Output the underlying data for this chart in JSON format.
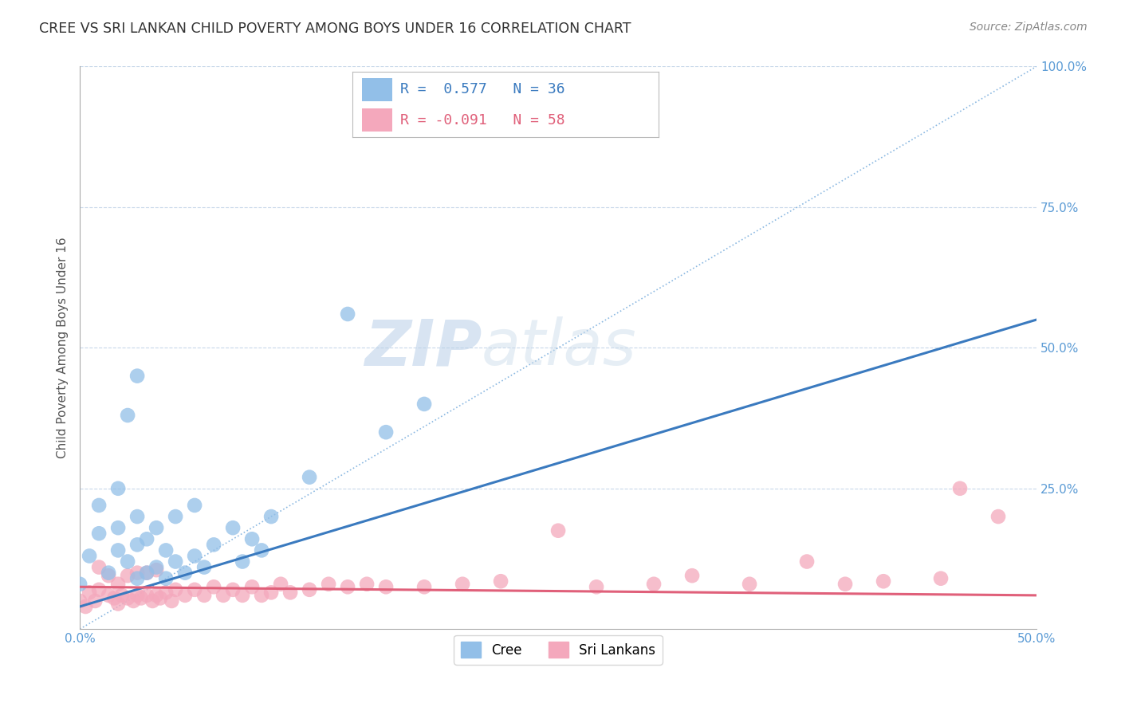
{
  "title": "CREE VS SRI LANKAN CHILD POVERTY AMONG BOYS UNDER 16 CORRELATION CHART",
  "source": "Source: ZipAtlas.com",
  "ylabel": "Child Poverty Among Boys Under 16",
  "xlim": [
    0.0,
    0.5
  ],
  "ylim": [
    0.0,
    1.0
  ],
  "xtick_positions": [
    0.0,
    0.5
  ],
  "xticklabels": [
    "0.0%",
    "50.0%"
  ],
  "ytick_positions": [
    0.25,
    0.5,
    0.75,
    1.0
  ],
  "yticklabels": [
    "25.0%",
    "50.0%",
    "75.0%",
    "100.0%"
  ],
  "cree_R": 0.577,
  "cree_N": 36,
  "sri_R": -0.091,
  "sri_N": 58,
  "cree_color": "#92bfe8",
  "sri_color": "#f4a8bc",
  "cree_line_color": "#3a7abf",
  "sri_line_color": "#e0607a",
  "diagonal_color": "#5b9bd5",
  "watermark_zip": "ZIP",
  "watermark_atlas": "atlas",
  "background_color": "#ffffff",
  "grid_color": "#c8d8ea",
  "title_color": "#333333",
  "axis_label_color": "#5b9bd5",
  "legend_box_color": "#f0f4f8",
  "cree_x": [
    0.0,
    0.005,
    0.01,
    0.01,
    0.015,
    0.02,
    0.02,
    0.02,
    0.025,
    0.025,
    0.03,
    0.03,
    0.03,
    0.03,
    0.035,
    0.035,
    0.04,
    0.04,
    0.045,
    0.045,
    0.05,
    0.05,
    0.055,
    0.06,
    0.06,
    0.065,
    0.07,
    0.08,
    0.085,
    0.09,
    0.095,
    0.1,
    0.12,
    0.14,
    0.16,
    0.18
  ],
  "cree_y": [
    0.08,
    0.13,
    0.17,
    0.22,
    0.1,
    0.14,
    0.18,
    0.25,
    0.12,
    0.38,
    0.09,
    0.15,
    0.2,
    0.45,
    0.1,
    0.16,
    0.11,
    0.18,
    0.09,
    0.14,
    0.12,
    0.2,
    0.1,
    0.13,
    0.22,
    0.11,
    0.15,
    0.18,
    0.12,
    0.16,
    0.14,
    0.2,
    0.27,
    0.56,
    0.35,
    0.4
  ],
  "sri_x": [
    0.0,
    0.003,
    0.005,
    0.008,
    0.01,
    0.01,
    0.015,
    0.015,
    0.018,
    0.02,
    0.02,
    0.022,
    0.025,
    0.025,
    0.028,
    0.03,
    0.03,
    0.032,
    0.035,
    0.035,
    0.038,
    0.04,
    0.04,
    0.042,
    0.045,
    0.048,
    0.05,
    0.055,
    0.06,
    0.065,
    0.07,
    0.075,
    0.08,
    0.085,
    0.09,
    0.095,
    0.1,
    0.105,
    0.11,
    0.12,
    0.13,
    0.14,
    0.15,
    0.16,
    0.18,
    0.2,
    0.22,
    0.25,
    0.27,
    0.3,
    0.32,
    0.35,
    0.38,
    0.4,
    0.42,
    0.45,
    0.46,
    0.48
  ],
  "sri_y": [
    0.05,
    0.04,
    0.065,
    0.05,
    0.07,
    0.11,
    0.06,
    0.095,
    0.055,
    0.045,
    0.08,
    0.06,
    0.055,
    0.095,
    0.05,
    0.06,
    0.1,
    0.055,
    0.06,
    0.1,
    0.05,
    0.06,
    0.105,
    0.055,
    0.065,
    0.05,
    0.07,
    0.06,
    0.07,
    0.06,
    0.075,
    0.06,
    0.07,
    0.06,
    0.075,
    0.06,
    0.065,
    0.08,
    0.065,
    0.07,
    0.08,
    0.075,
    0.08,
    0.075,
    0.075,
    0.08,
    0.085,
    0.175,
    0.075,
    0.08,
    0.095,
    0.08,
    0.12,
    0.08,
    0.085,
    0.09,
    0.25,
    0.2
  ],
  "cree_line_x0": 0.0,
  "cree_line_x1": 0.5,
  "cree_line_y0": 0.04,
  "cree_line_y1": 0.55,
  "sri_line_x0": 0.0,
  "sri_line_x1": 0.5,
  "sri_line_y0": 0.075,
  "sri_line_y1": 0.06
}
